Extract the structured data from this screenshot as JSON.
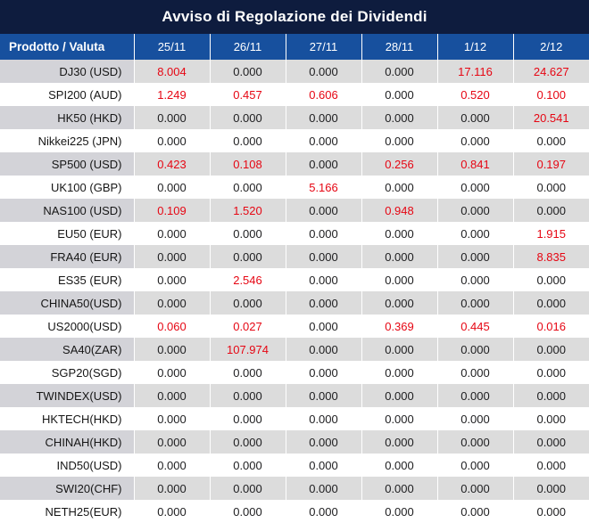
{
  "title": "Avviso di Regolazione dei Dividendi",
  "table": {
    "columns": [
      "Prodotto / Valuta",
      "25/11",
      "26/11",
      "27/11",
      "28/11",
      "1/12",
      "2/12"
    ],
    "zero_value": "0.000",
    "rows": [
      {
        "product": "DJ30 (USD)",
        "values": [
          "8.004",
          "0.000",
          "0.000",
          "0.000",
          "17.116",
          "24.627"
        ]
      },
      {
        "product": "SPI200 (AUD)",
        "values": [
          "1.249",
          "0.457",
          "0.606",
          "0.000",
          "0.520",
          "0.100"
        ]
      },
      {
        "product": "HK50 (HKD)",
        "values": [
          "0.000",
          "0.000",
          "0.000",
          "0.000",
          "0.000",
          "20.541"
        ]
      },
      {
        "product": "Nikkei225 (JPN)",
        "values": [
          "0.000",
          "0.000",
          "0.000",
          "0.000",
          "0.000",
          "0.000"
        ]
      },
      {
        "product": "SP500 (USD)",
        "values": [
          "0.423",
          "0.108",
          "0.000",
          "0.256",
          "0.841",
          "0.197"
        ]
      },
      {
        "product": "UK100 (GBP)",
        "values": [
          "0.000",
          "0.000",
          "5.166",
          "0.000",
          "0.000",
          "0.000"
        ]
      },
      {
        "product": "NAS100 (USD)",
        "values": [
          "0.109",
          "1.520",
          "0.000",
          "0.948",
          "0.000",
          "0.000"
        ]
      },
      {
        "product": "EU50 (EUR)",
        "values": [
          "0.000",
          "0.000",
          "0.000",
          "0.000",
          "0.000",
          "1.915"
        ]
      },
      {
        "product": "FRA40 (EUR)",
        "values": [
          "0.000",
          "0.000",
          "0.000",
          "0.000",
          "0.000",
          "8.835"
        ]
      },
      {
        "product": "ES35 (EUR)",
        "values": [
          "0.000",
          "2.546",
          "0.000",
          "0.000",
          "0.000",
          "0.000"
        ]
      },
      {
        "product": "CHINA50(USD)",
        "values": [
          "0.000",
          "0.000",
          "0.000",
          "0.000",
          "0.000",
          "0.000"
        ]
      },
      {
        "product": "US2000(USD)",
        "values": [
          "0.060",
          "0.027",
          "0.000",
          "0.369",
          "0.445",
          "0.016"
        ]
      },
      {
        "product": "SA40(ZAR)",
        "values": [
          "0.000",
          "107.974",
          "0.000",
          "0.000",
          "0.000",
          "0.000"
        ]
      },
      {
        "product": "SGP20(SGD)",
        "values": [
          "0.000",
          "0.000",
          "0.000",
          "0.000",
          "0.000",
          "0.000"
        ]
      },
      {
        "product": "TWINDEX(USD)",
        "values": [
          "0.000",
          "0.000",
          "0.000",
          "0.000",
          "0.000",
          "0.000"
        ]
      },
      {
        "product": "HKTECH(HKD)",
        "values": [
          "0.000",
          "0.000",
          "0.000",
          "0.000",
          "0.000",
          "0.000"
        ]
      },
      {
        "product": "CHINAH(HKD)",
        "values": [
          "0.000",
          "0.000",
          "0.000",
          "0.000",
          "0.000",
          "0.000"
        ]
      },
      {
        "product": "IND50(USD)",
        "values": [
          "0.000",
          "0.000",
          "0.000",
          "0.000",
          "0.000",
          "0.000"
        ]
      },
      {
        "product": "SWI20(CHF)",
        "values": [
          "0.000",
          "0.000",
          "0.000",
          "0.000",
          "0.000",
          "0.000"
        ]
      },
      {
        "product": "NETH25(EUR)",
        "values": [
          "0.000",
          "0.000",
          "0.000",
          "0.000",
          "0.000",
          "0.000"
        ]
      }
    ]
  },
  "colors": {
    "title_bg": "#0e1c3e",
    "header_bg": "#17509e",
    "alt_row_bg": "#dcdcdc",
    "alt_row_first_col_bg": "#d3d3d8",
    "nonzero_text": "#e60613",
    "zero_text": "#1d1d1f"
  }
}
